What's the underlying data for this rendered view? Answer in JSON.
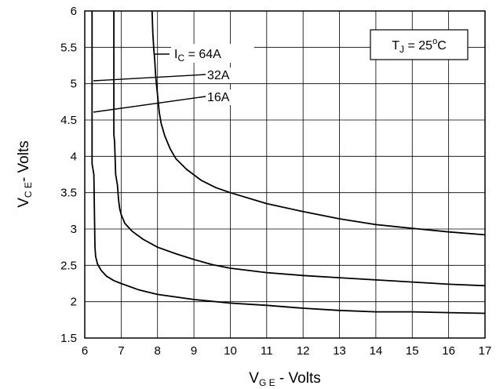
{
  "chart_data": {
    "type": "line",
    "xlabel": {
      "main": "V",
      "sub": "G E",
      "rest": " - Volts"
    },
    "ylabel": {
      "main": "V",
      "sub": "C E",
      "rest": "- Volts"
    },
    "xlim": [
      6,
      17
    ],
    "ylim": [
      1.5,
      6
    ],
    "xticks": [
      "6",
      "7",
      "8",
      "9",
      "10",
      "11",
      "12",
      "13",
      "14",
      "15",
      "16",
      "17"
    ],
    "yticks": [
      "1.5",
      "2",
      "2.5",
      "3",
      "3.5",
      "4",
      "4.5",
      "5",
      "5.5",
      "6"
    ],
    "grid": true,
    "series": [
      {
        "name": "I_C = 64A",
        "x": [
          7.85,
          7.87,
          7.9,
          7.92,
          7.95,
          8.0,
          8.05,
          8.1,
          8.2,
          8.35,
          8.5,
          8.8,
          9.2,
          9.6,
          10.0,
          11.0,
          12.0,
          13.0,
          14.0,
          15.0,
          16.0,
          17.0
        ],
        "y": [
          6.0,
          5.7,
          5.45,
          5.35,
          5.1,
          4.85,
          4.6,
          4.45,
          4.28,
          4.1,
          3.97,
          3.82,
          3.67,
          3.57,
          3.5,
          3.35,
          3.24,
          3.14,
          3.06,
          3.01,
          2.96,
          2.92
        ]
      },
      {
        "name": "32A",
        "x": [
          6.8,
          6.8,
          6.82,
          6.85,
          6.9,
          6.93,
          6.96,
          7.0,
          7.1,
          7.3,
          7.6,
          8.0,
          8.5,
          9.0,
          9.5,
          10.0,
          11.0,
          12.0,
          13.0,
          14.0,
          15.0,
          16.0,
          17.0
        ],
        "y": [
          6.0,
          4.3,
          4.2,
          3.75,
          3.6,
          3.4,
          3.28,
          3.2,
          3.08,
          2.97,
          2.86,
          2.75,
          2.66,
          2.58,
          2.51,
          2.46,
          2.4,
          2.36,
          2.33,
          2.3,
          2.27,
          2.24,
          2.22
        ]
      },
      {
        "name": "16A",
        "x": [
          6.2,
          6.2,
          6.25,
          6.28,
          6.3,
          6.35,
          6.45,
          6.6,
          6.8,
          7.0,
          7.5,
          8.0,
          9.0,
          10.0,
          11.0,
          12.0,
          13.0,
          14.0,
          15.0,
          16.0,
          17.0
        ],
        "y": [
          6.0,
          3.9,
          3.75,
          2.75,
          2.62,
          2.52,
          2.43,
          2.35,
          2.29,
          2.25,
          2.16,
          2.1,
          2.03,
          1.98,
          1.95,
          1.91,
          1.88,
          1.86,
          1.86,
          1.85,
          1.84
        ]
      }
    ],
    "annotations": {
      "legend_box": {
        "main": "T",
        "sub": "J",
        "mid": " = 25",
        "sup": "o",
        "end": "C"
      },
      "ic_64": {
        "prefix": "I",
        "sub": "C",
        "rest": " = 64A"
      },
      "ic_32": "32A",
      "ic_16": "16A"
    }
  }
}
